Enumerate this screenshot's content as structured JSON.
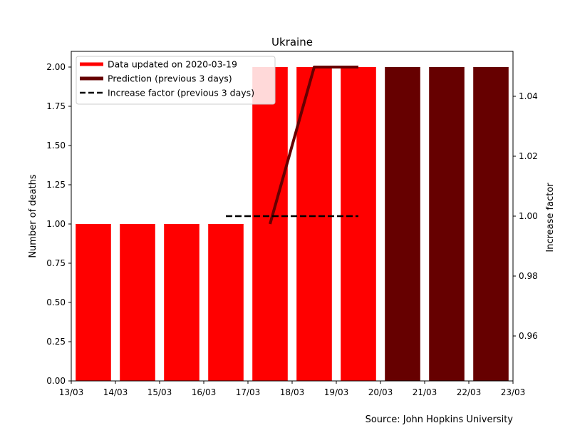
{
  "chart_data": {
    "type": "bar",
    "title": "Ukraine",
    "ylabel": "Number of deaths",
    "y2label": "Increase factor",
    "source": "Source: John Hopkins University",
    "categories": [
      "13/03",
      "14/03",
      "15/03",
      "16/03",
      "17/03",
      "18/03",
      "19/03",
      "20/03",
      "21/03",
      "22/03",
      "23/03"
    ],
    "xlim": [
      -0.5,
      9.5
    ],
    "ylim": [
      0,
      2.1
    ],
    "y2lim": [
      0.945,
      1.055
    ],
    "yticks": [
      "0.00",
      "0.25",
      "0.50",
      "0.75",
      "1.00",
      "1.25",
      "1.50",
      "1.75",
      "2.00"
    ],
    "y2ticks": [
      "0.96",
      "0.98",
      "1.00",
      "1.02",
      "1.04"
    ],
    "grid": false,
    "legend_position": "top-left",
    "legend": [
      {
        "label": "Data updated on 2020-03-19",
        "style": "thick-line",
        "color": "#ff0000"
      },
      {
        "label": "Prediction (previous 3 days)",
        "style": "thick-line",
        "color": "#660000"
      },
      {
        "label": "Increase factor (previous 3 days)",
        "style": "dashed-line",
        "color": "#000000"
      }
    ],
    "series": [
      {
        "kind": "bar",
        "color": "#ff0000",
        "x": [
          0,
          1,
          2,
          3,
          4,
          5,
          6
        ],
        "values": [
          1,
          1,
          1,
          1,
          2,
          2,
          2
        ]
      },
      {
        "kind": "bar",
        "color": "#660000",
        "x": [
          7,
          8,
          9
        ],
        "values": [
          2,
          2,
          2
        ]
      },
      {
        "kind": "line",
        "color": "#660000",
        "x": [
          4,
          5,
          6
        ],
        "values": [
          1,
          2,
          2
        ]
      },
      {
        "kind": "dashed-line",
        "axis": "right",
        "color": "#000000",
        "x": [
          3,
          6
        ],
        "values": [
          1.0,
          1.0
        ]
      }
    ]
  }
}
